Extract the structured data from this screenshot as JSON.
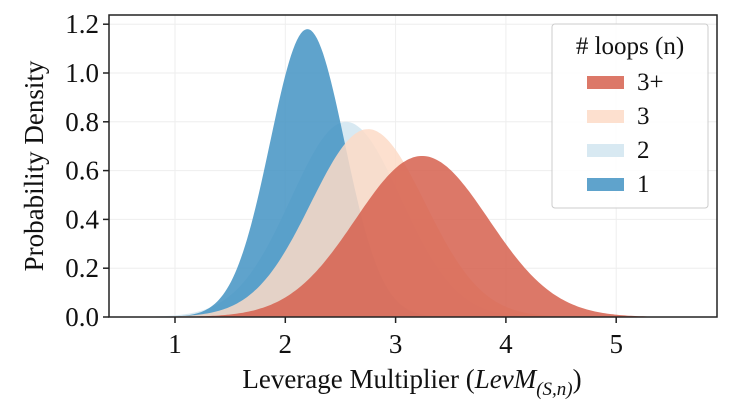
{
  "chart_data": {
    "type": "area",
    "title": "",
    "xlabel": "Leverage Multiplier (LevM(S,n))",
    "xlabel_parts": {
      "prefix": "Leverage Multiplier (",
      "italic": "LevM",
      "subscript": "(S,n)",
      "suffix": ")"
    },
    "ylabel": "Probability Density",
    "xlim": [
      0.4,
      5.9
    ],
    "ylim": [
      0.0,
      1.24
    ],
    "xticks": [
      1,
      2,
      3,
      4,
      5
    ],
    "xtick_labels": [
      "1",
      "2",
      "3",
      "4",
      "5"
    ],
    "yticks": [
      0.0,
      0.2,
      0.4,
      0.6,
      0.8,
      1.0,
      1.2
    ],
    "ytick_labels": [
      "0.0",
      "0.2",
      "0.4",
      "0.6",
      "0.8",
      "1.0",
      "1.2"
    ],
    "grid": true,
    "legend_position": "upper right",
    "legend_title": "# loops (n)",
    "series": [
      {
        "name": "2",
        "color": "#d1e5f0",
        "mean": 2.55,
        "std": 0.5,
        "peak": 0.8,
        "draw_order": 0
      },
      {
        "name": "1",
        "color": "#4393c3",
        "mean": 2.2,
        "std": 0.338,
        "peak": 1.18,
        "draw_order": 1
      },
      {
        "name": "3",
        "color": "#fddbc7",
        "mean": 2.75,
        "std": 0.518,
        "peak": 0.77,
        "draw_order": 2
      },
      {
        "name": "3+",
        "color": "#d6604d",
        "mean": 3.24,
        "std": 0.604,
        "peak": 0.66,
        "draw_order": 3
      }
    ],
    "legend_order": [
      "3+",
      "3",
      "2",
      "1"
    ],
    "fill_alpha": 0.85
  }
}
